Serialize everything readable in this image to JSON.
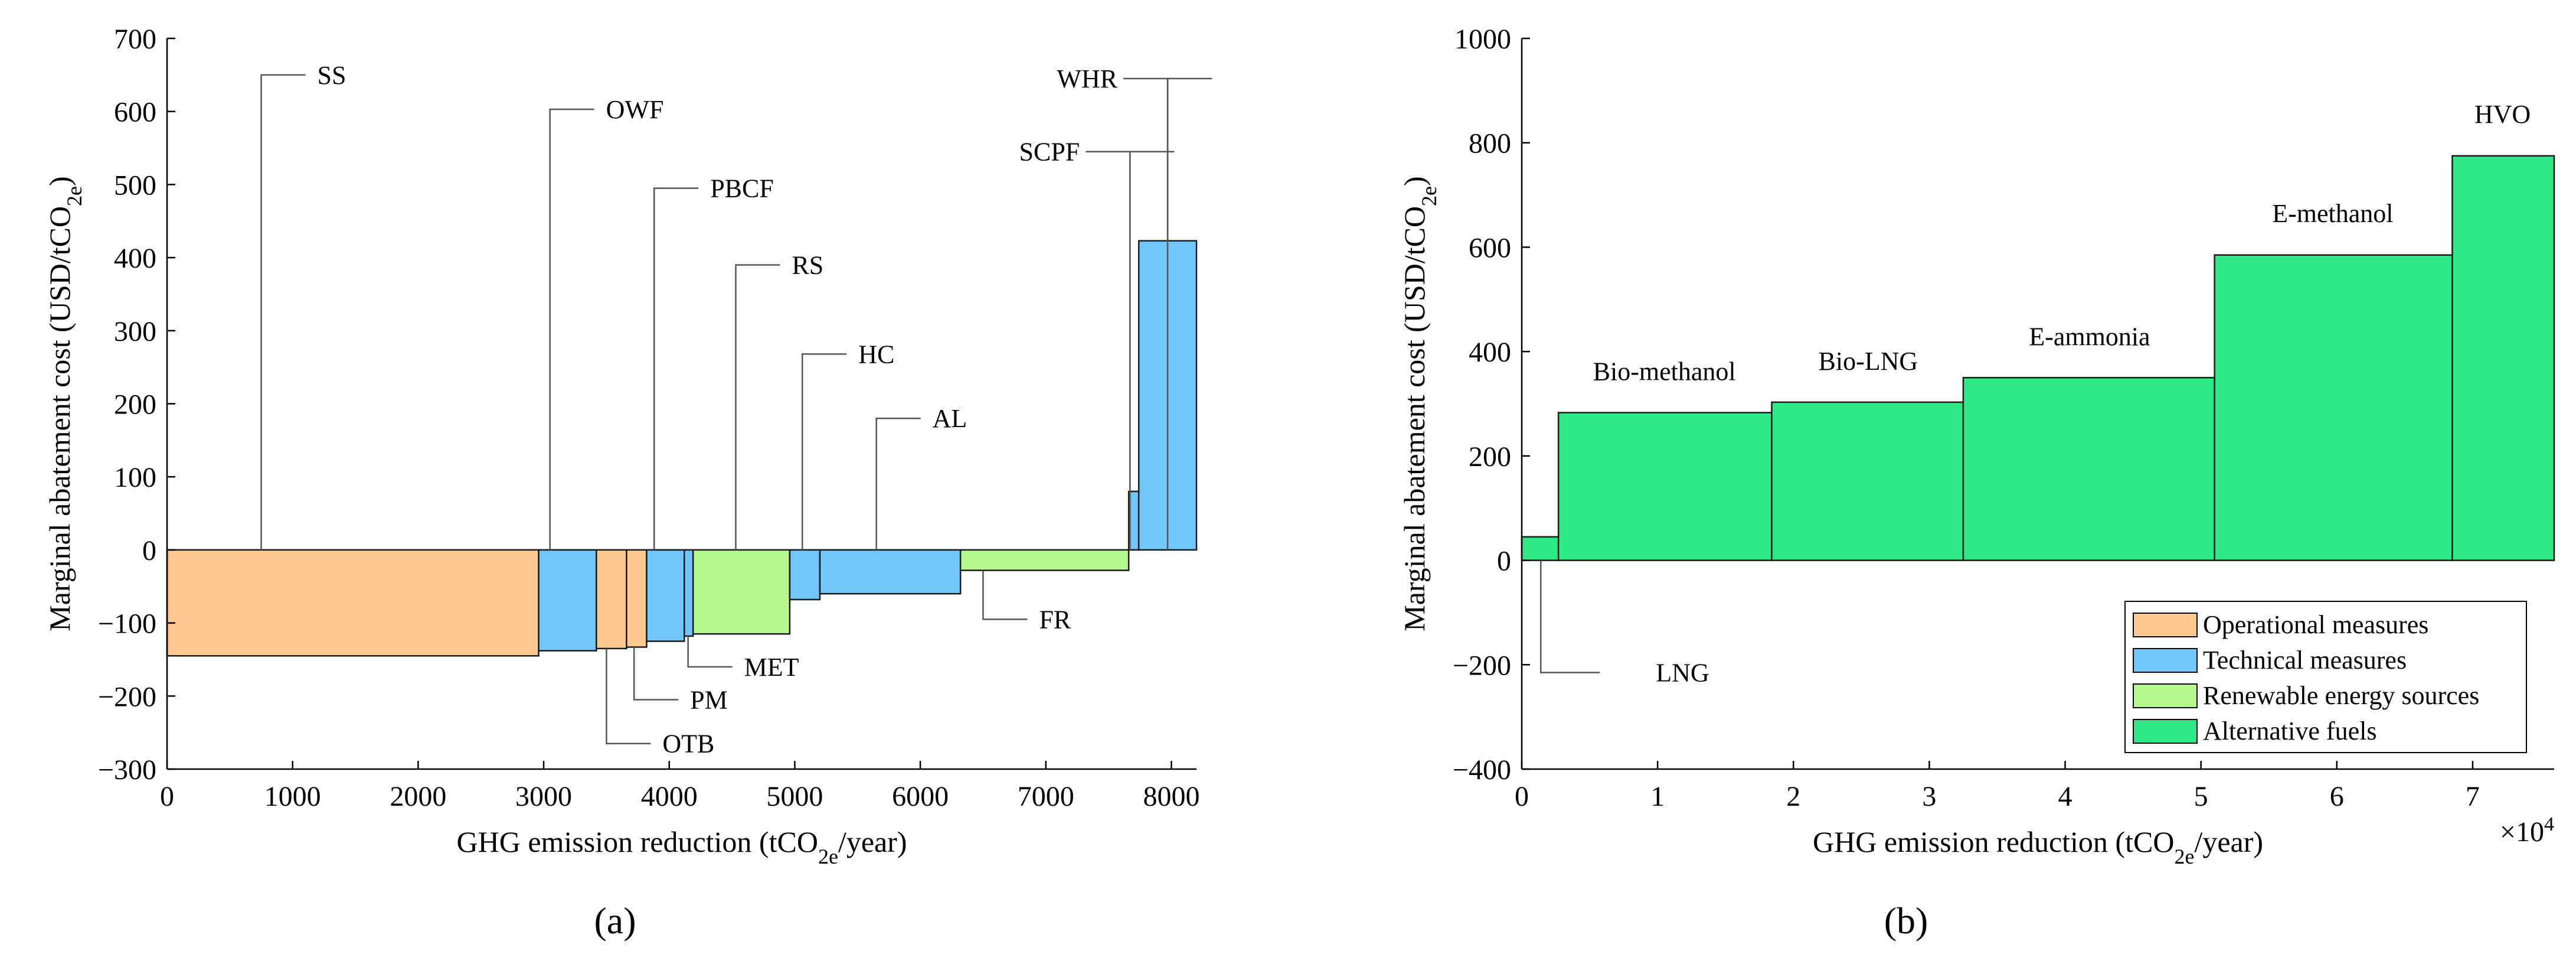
{
  "colors": {
    "operational": "#FFC98F",
    "technical": "#71C7FC",
    "renewable": "#B5F78C",
    "alternative": "#2DEA86"
  },
  "panels": {
    "a": "(a)",
    "b": "(b)"
  },
  "chart_data": [
    {
      "type": "bar",
      "subtype": "marginal-abatement-cost-curve",
      "xlabel": "GHG emission reduction (tCO2e/year)",
      "ylabel": "Marginal abatement cost (USD/tCO2e)",
      "xlabel_parts": {
        "pre": "GHG emission reduction (tCO",
        "sub": "2e",
        "post": "/year)"
      },
      "ylabel_parts": {
        "pre": "Marginal abatement cost (USD/tCO",
        "sub": "2e",
        "post": ")"
      },
      "xlim": [
        0,
        8200
      ],
      "ylim": [
        -300,
        700
      ],
      "xticks": [
        0,
        1000,
        2000,
        3000,
        4000,
        5000,
        6000,
        7000,
        8000
      ],
      "yticks": [
        -300,
        -200,
        -100,
        0,
        100,
        200,
        300,
        400,
        500,
        600,
        700
      ],
      "bars": [
        {
          "name": "SS",
          "x0": 0,
          "x1": 2960,
          "value": -145,
          "category": "operational",
          "label_x": 750,
          "label_y": 650
        },
        {
          "name": "OWF",
          "x0": 2960,
          "x1": 3420,
          "value": -138,
          "category": "technical",
          "label_x": 3050,
          "label_y": 603
        },
        {
          "name": "OTB",
          "x0": 3420,
          "x1": 3660,
          "value": -135,
          "category": "operational",
          "label_x": 3500,
          "label_y": -265
        },
        {
          "name": "PM",
          "x0": 3660,
          "x1": 3820,
          "value": -133,
          "category": "operational",
          "label_x": 3720,
          "label_y": -205
        },
        {
          "name": "PBCF",
          "x0": 3820,
          "x1": 4120,
          "value": -125,
          "category": "technical",
          "label_x": 3880,
          "label_y": 495
        },
        {
          "name": "MET",
          "x0": 4120,
          "x1": 4190,
          "value": -118,
          "category": "technical",
          "label_x": 4150,
          "label_y": -160
        },
        {
          "name": "RS",
          "x0": 4190,
          "x1": 4960,
          "value": -115,
          "category": "renewable",
          "label_x": 4530,
          "label_y": 390
        },
        {
          "name": "HC",
          "x0": 4960,
          "x1": 5200,
          "value": -68,
          "category": "technical",
          "label_x": 5060,
          "label_y": 268
        },
        {
          "name": "AL",
          "x0": 5200,
          "x1": 6320,
          "value": -60,
          "category": "technical",
          "label_x": 5650,
          "label_y": 180
        },
        {
          "name": "FR",
          "x0": 6320,
          "x1": 7660,
          "value": -28,
          "category": "renewable",
          "label_x": 6500,
          "label_y": -95
        },
        {
          "name": "SCPF",
          "x0": 7660,
          "x1": 7740,
          "value": 80,
          "category": "technical",
          "label_x": 7670,
          "label_y": 545
        },
        {
          "name": "WHR",
          "x0": 7740,
          "x1": 8200,
          "value": 423,
          "category": "technical",
          "label_x": 7970,
          "label_y": 645
        }
      ]
    },
    {
      "type": "bar",
      "subtype": "marginal-abatement-cost-curve",
      "xlabel": "GHG emission reduction (tCO2e/year)",
      "ylabel": "Marginal abatement cost (USD/tCO2e)",
      "xlabel_parts": {
        "pre": "GHG emission reduction (tCO",
        "sub": "2e",
        "post": "/year)"
      },
      "ylabel_parts": {
        "pre": "Marginal abatement cost (USD/tCO",
        "sub": "2e",
        "post": ")"
      },
      "xlim": [
        0,
        7.6
      ],
      "ylim": [
        -400,
        1000
      ],
      "x_multiplier": "×10",
      "x_multiplier_exp": "4",
      "xticks": [
        0,
        1,
        2,
        3,
        4,
        5,
        6,
        7
      ],
      "yticks": [
        -400,
        -200,
        0,
        200,
        400,
        600,
        800,
        1000
      ],
      "bars": [
        {
          "name": "LNG",
          "x0": 0,
          "x1": 0.27,
          "value": 45,
          "category": "alternative",
          "label_x": 0.14,
          "label_y": -215
        },
        {
          "name": "Bio-methanol",
          "x0": 0.27,
          "x1": 1.84,
          "value": 283,
          "category": "alternative",
          "label_x": 1.05,
          "label_y": 345
        },
        {
          "name": "Bio-LNG",
          "x0": 1.84,
          "x1": 3.25,
          "value": 303,
          "category": "alternative",
          "label_x": 2.55,
          "label_y": 365
        },
        {
          "name": "E-ammonia",
          "x0": 3.25,
          "x1": 5.1,
          "value": 350,
          "category": "alternative",
          "label_x": 4.18,
          "label_y": 412
        },
        {
          "name": "E-methanol",
          "x0": 5.1,
          "x1": 6.85,
          "value": 585,
          "category": "alternative",
          "label_x": 5.97,
          "label_y": 648
        },
        {
          "name": "HVO",
          "x0": 6.85,
          "x1": 7.6,
          "value": 775,
          "category": "alternative",
          "label_x": 7.22,
          "label_y": 838
        }
      ],
      "legend": {
        "position": "bottom-right",
        "entries": [
          {
            "label": "Operational measures",
            "category": "operational"
          },
          {
            "label": "Technical measures",
            "category": "technical"
          },
          {
            "label": "Renewable energy sources",
            "category": "renewable"
          },
          {
            "label": "Alternative fuels",
            "category": "alternative"
          }
        ]
      }
    }
  ]
}
